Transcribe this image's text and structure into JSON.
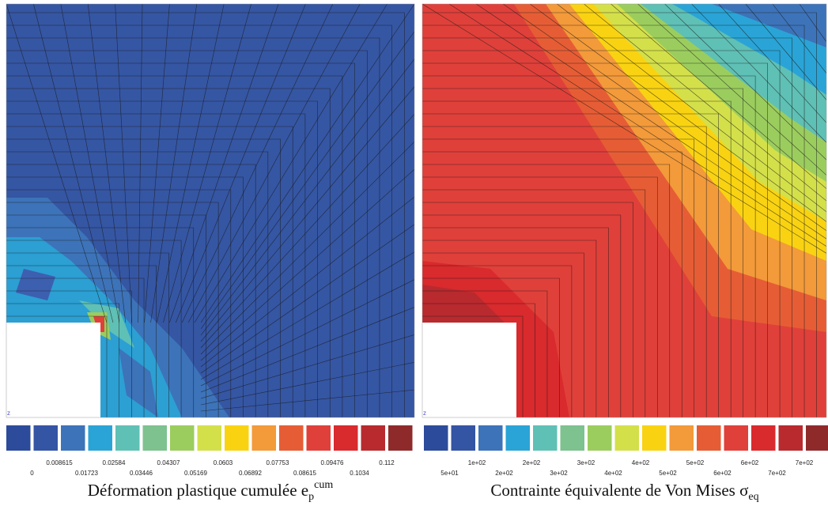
{
  "panels": [
    {
      "caption": {
        "text": "Déformation plastique cumulée e",
        "sub": "p",
        "sup": "cum"
      },
      "axis_letter": "z",
      "colorbar": {
        "colors": [
          "#2c4b9b",
          "#3454a4",
          "#3d73b9",
          "#2aa4d6",
          "#5fc0b5",
          "#7dc28f",
          "#9bcd5e",
          "#d4e04a",
          "#f9d312",
          "#f39a3a",
          "#e65d35",
          "#e0403a",
          "#d92a2d",
          "#b82a2e",
          "#8f2a2b"
        ],
        "labels": [
          "0",
          "0.008615",
          "0.01723",
          "0.02584",
          "0.03446",
          "0.04307",
          "0.05169",
          "0.0603",
          "0.06892",
          "0.07753",
          "0.08615",
          "0.09476",
          "0.1034",
          "0.112"
        ]
      }
    },
    {
      "caption": {
        "text": "Contrainte équivalente de Von Mises σ",
        "sub": "eq"
      },
      "axis_letter": "z",
      "colorbar": {
        "colors": [
          "#2c4b9b",
          "#3454a4",
          "#3d73b9",
          "#2aa4d6",
          "#5fc0b5",
          "#7dc28f",
          "#9bcd5e",
          "#d4e04a",
          "#f9d312",
          "#f39a3a",
          "#e65d35",
          "#e0403a",
          "#d92a2d",
          "#b82a2e",
          "#8f2a2b"
        ],
        "labels": [
          "5e+01",
          "1e+02",
          "2e+02",
          "2e+02",
          "3e+02",
          "3e+02",
          "4e+02",
          "4e+02",
          "5e+02",
          "5e+02",
          "6e+02",
          "6e+02",
          "7e+02",
          "7e+02"
        ]
      }
    }
  ]
}
